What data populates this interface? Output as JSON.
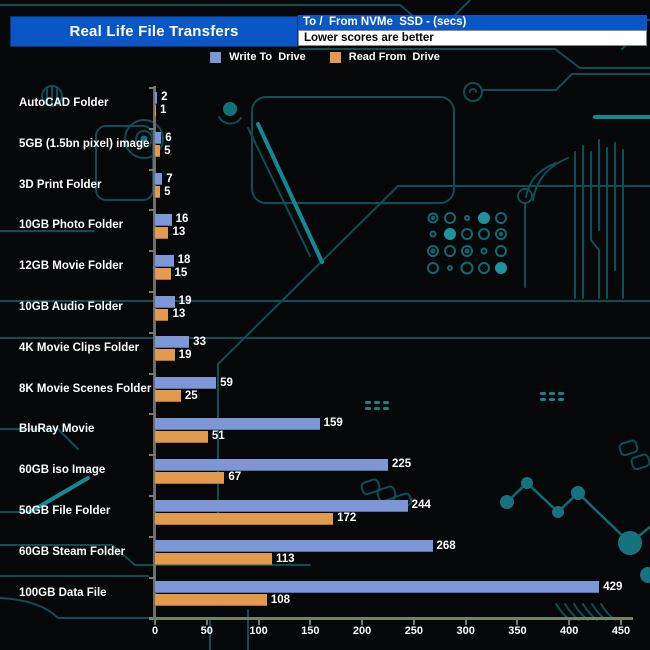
{
  "header": {
    "title": "Real Life File Transfers",
    "subtitle_top": "To /  From NVMe  SSD - (secs)",
    "subtitle_bottom": "Lower scores are better"
  },
  "legend": [
    {
      "label": "Write To  Drive",
      "color": "#7d97d6"
    },
    {
      "label": "Read From  Drive",
      "color": "#e29a4c"
    }
  ],
  "chart_data": {
    "type": "bar",
    "orientation": "horizontal",
    "title": "Real Life File Transfers",
    "subtitle": "To / From NVMe SSD - (secs)",
    "note": "Lower scores are better",
    "unit": "seconds",
    "legend_position": "top",
    "categories": [
      "AutoCAD Folder",
      "5GB (1.5bn pixel) image",
      "3D Print Folder",
      "10GB Photo Folder",
      "12GB Movie Folder",
      "10GB Audio Folder",
      "4K Movie Clips Folder",
      "8K Movie Scenes Folder",
      "BluRay Movie",
      "60GB iso Image",
      "50GB File Folder",
      "60GB Steam Folder",
      "100GB Data File"
    ],
    "series": [
      {
        "name": "Write To  Drive",
        "color": "#7d97d6",
        "values": [
          2,
          6,
          7,
          16,
          18,
          19,
          33,
          59,
          159,
          225,
          244,
          268,
          429
        ]
      },
      {
        "name": "Read From  Drive",
        "color": "#e29a4c",
        "values": [
          1,
          5,
          5,
          13,
          15,
          13,
          19,
          25,
          51,
          67,
          172,
          113,
          108
        ]
      }
    ],
    "x_axis": {
      "ticks": [
        0,
        50,
        100,
        150,
        200,
        250,
        300,
        350,
        400,
        450
      ],
      "min": 0,
      "max": 450
    }
  },
  "colors": {
    "background": "#050708",
    "header_blue": "#0956c4",
    "write_bar": "#7d97d6",
    "read_bar": "#e29a4c",
    "circuit_trace": "#0c4f55",
    "circuit_bright": "#128a91",
    "axis_grey": "#6d6d6d",
    "axis_green_grey": "#73806b"
  }
}
